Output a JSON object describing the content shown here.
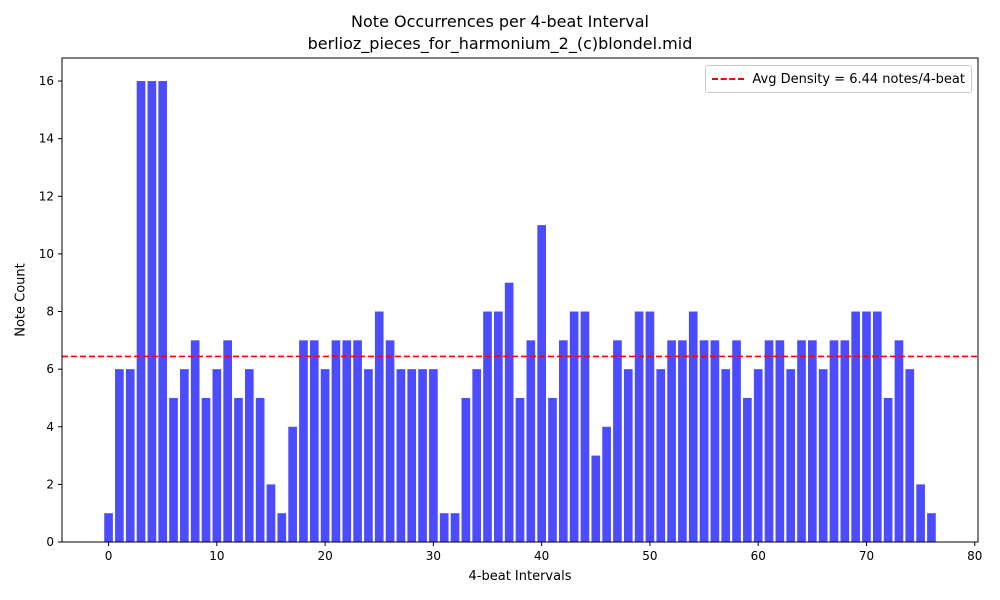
{
  "chart_data": {
    "type": "bar",
    "title": "Note Occurrences per 4-beat Interval",
    "subtitle": "berlioz_pieces_for_harmonium_2_(c)blondel.mid",
    "xlabel": "4-beat Intervals",
    "ylabel": "Note Count",
    "x": [
      0,
      1,
      2,
      3,
      4,
      5,
      6,
      7,
      8,
      9,
      10,
      11,
      12,
      13,
      14,
      15,
      16,
      17,
      18,
      19,
      20,
      21,
      22,
      23,
      24,
      25,
      26,
      27,
      28,
      29,
      30,
      31,
      32,
      33,
      34,
      35,
      36,
      37,
      38,
      39,
      40,
      41,
      42,
      43,
      44,
      45,
      46,
      47,
      48,
      49,
      50,
      51,
      52,
      53,
      54,
      55,
      56,
      57,
      58,
      59,
      60,
      61,
      62,
      63,
      64,
      65,
      66,
      67,
      68,
      69,
      70,
      71,
      72,
      73,
      74,
      75,
      76
    ],
    "values": [
      1,
      6,
      6,
      16,
      16,
      16,
      5,
      6,
      7,
      5,
      6,
      7,
      5,
      6,
      5,
      2,
      1,
      4,
      7,
      7,
      6,
      7,
      7,
      7,
      6,
      8,
      7,
      6,
      6,
      6,
      6,
      1,
      1,
      5,
      6,
      8,
      8,
      9,
      5,
      7,
      11,
      5,
      7,
      8,
      8,
      3,
      4,
      7,
      6,
      8,
      8,
      6,
      7,
      7,
      8,
      7,
      7,
      6,
      7,
      5,
      6,
      7,
      7,
      6,
      7,
      7,
      6,
      7,
      7,
      8,
      8,
      8,
      5,
      7,
      6,
      2,
      1
    ],
    "bar_color": "#0000ff",
    "bar_alpha": 0.7,
    "xlim": [
      -4.3,
      80.3
    ],
    "ylim": [
      0,
      16.8
    ],
    "xticks": [
      0,
      10,
      20,
      30,
      40,
      50,
      60,
      70,
      80
    ],
    "yticks": [
      0,
      2,
      4,
      6,
      8,
      10,
      12,
      14,
      16
    ],
    "average_line": {
      "value": 6.44,
      "label": "Avg Density = 6.44 notes/4-beat",
      "color": "#ff0000",
      "style": "dashed"
    },
    "legend_position": "top-right",
    "grid": false
  }
}
